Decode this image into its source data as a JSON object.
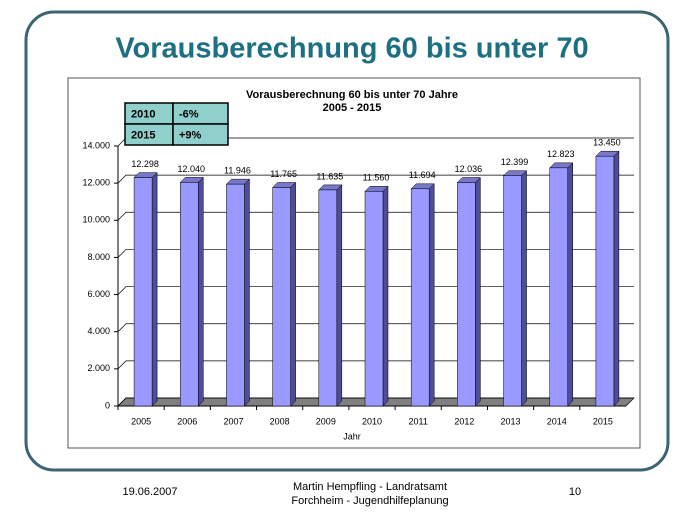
{
  "slide": {
    "title": "Vorausberechnung 60 bis unter 70",
    "footer_date": "19.06.2007",
    "footer_author": [
      "Martin Hempfling - Landratsamt",
      "Forchheim - Jugendhilfeplanung"
    ],
    "page_number": "10"
  },
  "table": {
    "rows": [
      [
        "2010",
        "-6%"
      ],
      [
        "2015",
        "+9%"
      ]
    ]
  },
  "chart_data": {
    "type": "bar",
    "title": "Vorausberechnung 60 bis unter 70 Jahre",
    "subtitle": "2005 - 2015",
    "x_label": "Jahr",
    "categories": [
      "2005",
      "2006",
      "2007",
      "2008",
      "2009",
      "2010",
      "2011",
      "2012",
      "2013",
      "2014",
      "2015"
    ],
    "values": [
      12298,
      12040,
      11946,
      11765,
      11635,
      11560,
      11694,
      12036,
      12399,
      12823,
      13450
    ],
    "value_labels": [
      "12.298",
      "12.040",
      "11.946",
      "11.765",
      "11.635",
      "11.560",
      "11.694",
      "12.036",
      "12.399",
      "12.823",
      "13.450"
    ],
    "color": "#9999ff",
    "ylim": [
      0,
      14000
    ],
    "yticks": [
      0,
      {
        "value": 2000,
        "label": "2.000"
      },
      {
        "value": 4000,
        "label": "4.000"
      },
      {
        "value": 6000,
        "label": "6.000"
      },
      {
        "value": 8000,
        "label": "8.000"
      },
      {
        "value": 10000,
        "label": "10.000"
      },
      {
        "value": 12000,
        "label": "12.000"
      },
      {
        "value": 14000,
        "label": "14.000"
      }
    ],
    "grid": true
  }
}
